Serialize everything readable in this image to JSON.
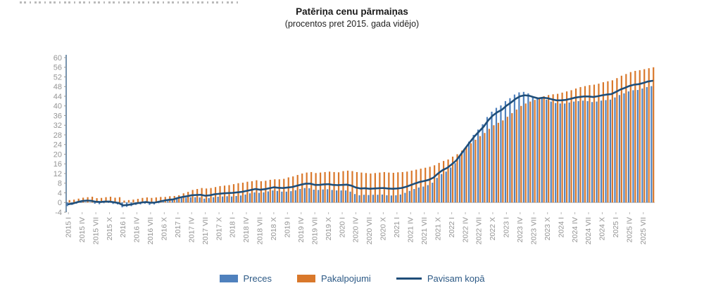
{
  "header": {
    "title": "Patēriņa cenu pārmaiņas",
    "subtitle": "(procentos pret 2015. gada vidējo)"
  },
  "legend": {
    "items": [
      {
        "label": "Preces",
        "color": "#4f81bd",
        "marker": "rect"
      },
      {
        "label": "Pakalpojumi",
        "color": "#d9782b",
        "marker": "rect"
      },
      {
        "label": "Pavisam kopā",
        "color": "#1f4e79",
        "marker": "line"
      }
    ]
  },
  "axis_colors": {
    "labels": "#949494",
    "y_axis_line": "#1f4e79",
    "zero_line": "#b8b8b8"
  },
  "chart_data": {
    "type": "bar",
    "subtype": "grouped-monthly-bars-with-total-line",
    "title": "Patēriņa cenu pārmaiņas",
    "subtitle": "(procentos pret 2015. gada vidējo)",
    "ylabel": "",
    "xlabel": "",
    "ylim": [
      -4,
      60
    ],
    "ytick_step": 4,
    "yticks": [
      60,
      56,
      52,
      48,
      44,
      40,
      36,
      32,
      28,
      24,
      20,
      16,
      12,
      8,
      4,
      0,
      -4
    ],
    "grid": false,
    "legend_position": "bottom",
    "months_count": 129,
    "x_tick_every": 3,
    "x_tick_labels": [
      "2015 I",
      "2015 IV",
      "2015 VII",
      "2015 X",
      "2016 I",
      "2016 IV",
      "2016 VII",
      "2016 X",
      "2017 I",
      "2017 IV",
      "2017 VII",
      "2017 X",
      "2018 I",
      "2018 IV",
      "2018 VII",
      "2018 X",
      "2019 I",
      "2019 IV",
      "2019 VII",
      "2019 X",
      "2020 I",
      "2020 IV",
      "2020 VII",
      "2020 X",
      "2021 I",
      "2021 IV",
      "2021 VII",
      "2021 X",
      "2022 I",
      "2022 IV",
      "2022 VII",
      "2022 X",
      "2023 I",
      "2023 IV",
      "2023 VII",
      "2023 X",
      "2024 I",
      "2024 IV",
      "2024 VII",
      "2024 X",
      "2025 I",
      "2025 IV",
      "2025 VII"
    ],
    "series": [
      {
        "name": "Preces",
        "type": "bar",
        "color": "#4f81bd",
        "values": [
          -1.5,
          -1.0,
          -0.5,
          0.0,
          0.2,
          0.1,
          -0.5,
          -0.7,
          -0.3,
          -0.2,
          -0.6,
          -0.8,
          -2.0,
          -1.8,
          -1.5,
          -1.0,
          -0.8,
          -0.5,
          -1.0,
          -0.8,
          -0.3,
          0.3,
          0.6,
          0.9,
          1.5,
          1.8,
          2.0,
          2.2,
          2.2,
          2.1,
          1.6,
          1.8,
          2.2,
          2.4,
          2.5,
          2.6,
          2.5,
          2.7,
          2.9,
          3.3,
          3.8,
          4.2,
          4.0,
          4.2,
          4.6,
          5.0,
          4.8,
          4.5,
          4.5,
          4.7,
          5.1,
          5.6,
          6.0,
          5.9,
          5.3,
          5.2,
          5.4,
          5.5,
          5.2,
          5.0,
          5.0,
          5.0,
          4.5,
          3.5,
          3.0,
          3.2,
          3.1,
          3.2,
          3.2,
          3.3,
          3.0,
          2.9,
          3.0,
          3.3,
          4.0,
          4.8,
          5.6,
          6.2,
          6.6,
          7.2,
          8.2,
          10.2,
          11.8,
          12.8,
          14.5,
          16.3,
          19.3,
          22.3,
          25.2,
          28.0,
          30.2,
          32.4,
          35.4,
          37.6,
          39.2,
          40.2,
          42.0,
          43.2,
          44.7,
          45.6,
          45.8,
          45.2,
          44.0,
          43.2,
          43.2,
          42.6,
          41.8,
          41.2,
          41.0,
          41.0,
          41.4,
          41.8,
          42.0,
          42.2,
          42.0,
          41.6,
          41.8,
          42.2,
          42.4,
          42.6,
          43.5,
          44.5,
          45.2,
          46.0,
          46.5,
          46.6,
          47.2,
          47.8,
          48.2
        ]
      },
      {
        "name": "Pakalpojumi",
        "type": "bar",
        "color": "#d9782b",
        "values": [
          1.0,
          1.2,
          1.6,
          2.0,
          2.2,
          2.4,
          1.8,
          1.9,
          2.2,
          2.4,
          2.0,
          2.2,
          0.8,
          1.0,
          1.2,
          1.5,
          1.9,
          2.1,
          1.9,
          2.1,
          2.3,
          2.3,
          2.6,
          2.7,
          3.0,
          3.8,
          4.4,
          5.2,
          5.6,
          6.0,
          5.8,
          6.0,
          6.4,
          6.8,
          7.0,
          7.2,
          7.6,
          8.0,
          8.2,
          8.6,
          8.8,
          9.2,
          8.8,
          9.0,
          9.4,
          9.6,
          9.6,
          9.8,
          10.4,
          10.8,
          11.4,
          12.0,
          12.4,
          12.6,
          12.2,
          12.4,
          12.6,
          12.8,
          12.6,
          12.5,
          13.0,
          13.2,
          13.0,
          12.6,
          12.4,
          12.2,
          12.0,
          12.2,
          12.4,
          12.6,
          12.4,
          12.3,
          12.5,
          12.6,
          12.8,
          13.2,
          13.6,
          14.0,
          14.4,
          14.8,
          15.4,
          16.4,
          17.2,
          17.8,
          19.0,
          20.0,
          21.5,
          23.0,
          24.5,
          26.0,
          27.5,
          28.8,
          30.5,
          32.0,
          33.0,
          34.0,
          35.5,
          37.0,
          38.5,
          40.0,
          41.0,
          41.8,
          42.5,
          43.0,
          44.0,
          44.5,
          44.8,
          45.0,
          45.5,
          46.0,
          46.5,
          47.2,
          47.8,
          48.2,
          48.6,
          48.8,
          49.2,
          49.8,
          50.2,
          50.6,
          51.5,
          52.5,
          53.2,
          54.0,
          54.5,
          54.8,
          55.2,
          55.6,
          56.0
        ]
      },
      {
        "name": "Pavisam kopā",
        "type": "line",
        "color": "#1f4e79",
        "values": [
          -0.7,
          -0.4,
          0.2,
          0.6,
          0.8,
          0.7,
          0.3,
          0.2,
          0.4,
          0.4,
          0.1,
          -0.2,
          -1.2,
          -1.0,
          -0.7,
          -0.3,
          0.0,
          0.2,
          -0.1,
          0.0,
          0.4,
          0.8,
          1.1,
          1.3,
          1.9,
          2.3,
          2.6,
          3.0,
          3.1,
          3.2,
          2.8,
          3.0,
          3.4,
          3.6,
          3.8,
          3.9,
          4.0,
          4.2,
          4.4,
          4.8,
          5.2,
          5.6,
          5.3,
          5.5,
          5.9,
          6.3,
          6.1,
          6.0,
          6.2,
          6.4,
          6.9,
          7.4,
          7.8,
          7.8,
          7.3,
          7.3,
          7.5,
          7.6,
          7.3,
          7.2,
          7.3,
          7.4,
          7.0,
          6.2,
          5.8,
          5.9,
          5.7,
          5.8,
          5.9,
          6.0,
          5.8,
          5.7,
          5.8,
          6.0,
          6.5,
          7.2,
          7.9,
          8.5,
          8.9,
          9.4,
          10.3,
          12.0,
          13.4,
          14.3,
          15.8,
          17.4,
          19.9,
          22.5,
          25.0,
          27.4,
          29.4,
          31.4,
          34.0,
          36.0,
          37.4,
          38.4,
          40.1,
          41.4,
          42.9,
          44.0,
          44.4,
          44.2,
          43.6,
          43.1,
          43.4,
          43.2,
          42.7,
          42.3,
          42.3,
          42.5,
          42.9,
          43.4,
          43.7,
          43.9,
          43.9,
          43.7,
          44.0,
          44.4,
          44.7,
          44.9,
          45.8,
          46.8,
          47.5,
          48.3,
          48.8,
          49.0,
          49.5,
          50.1,
          50.4
        ]
      }
    ]
  }
}
